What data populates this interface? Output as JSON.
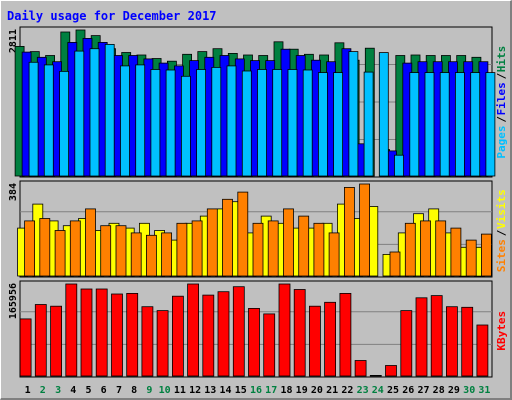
{
  "chart_data": [
    {
      "type": "bar",
      "title": "Daily usage for December 2017",
      "categories": [
        "1",
        "2",
        "3",
        "4",
        "5",
        "6",
        "7",
        "8",
        "9",
        "10",
        "11",
        "12",
        "13",
        "14",
        "15",
        "16",
        "17",
        "18",
        "19",
        "20",
        "21",
        "22",
        "23",
        "24",
        "25",
        "26",
        "27",
        "28",
        "29",
        "30",
        "31"
      ],
      "weekend_days": [
        "2",
        "3",
        "9",
        "10",
        "16",
        "17",
        "23",
        "24",
        "30",
        "31"
      ],
      "ymax_label": "2811",
      "ylim": [
        0,
        2811
      ],
      "legend": [
        {
          "label": "Hits",
          "color": "#008040"
        },
        {
          "label": "Files",
          "color": "#0000ff"
        },
        {
          "label": "Pages",
          "color": "#00c0ff"
        }
      ],
      "series": [
        {
          "name": "Hits",
          "color": "#008040",
          "values": [
            2495,
            2395,
            2320,
            2772,
            2811,
            2703,
            2451,
            2378,
            2329,
            2263,
            2210,
            2344,
            2395,
            2451,
            2361,
            2329,
            2320,
            2584,
            2441,
            2344,
            2329,
            2565,
            2229,
            2461,
            511,
            2320,
            2329,
            2320,
            2320,
            2320,
            2285
          ]
        },
        {
          "name": "Files",
          "color": "#0000ff",
          "values": [
            2385,
            2285,
            2200,
            2572,
            2650,
            2573,
            2320,
            2320,
            2254,
            2174,
            2120,
            2221,
            2285,
            2320,
            2254,
            2221,
            2221,
            2441,
            2320,
            2229,
            2200,
            2451,
            620,
            0,
            483,
            2174,
            2200,
            2200,
            2200,
            2200,
            2200
          ]
        },
        {
          "name": "Pages",
          "color": "#00c0ff",
          "values": [
            2190,
            2139,
            2013,
            2405,
            2451,
            2533,
            2120,
            2139,
            2050,
            2040,
            1920,
            2050,
            2090,
            2120,
            2021,
            2050,
            2050,
            2050,
            2040,
            1990,
            1990,
            2395,
            2000,
            2375,
            400,
            1990,
            1990,
            1990,
            1990,
            1990,
            1990
          ]
        }
      ]
    },
    {
      "type": "bar",
      "ymax_label": "384",
      "ylim": [
        0,
        384
      ],
      "legend": [
        {
          "label": "Visits",
          "color": "#ffff00"
        },
        {
          "label": "Sites",
          "color": "#ff8000"
        }
      ],
      "series": [
        {
          "name": "Visits",
          "color": "#ffff00",
          "values": [
            200,
            300,
            230,
            210,
            240,
            190,
            220,
            200,
            220,
            190,
            150,
            220,
            250,
            280,
            310,
            180,
            250,
            220,
            200,
            200,
            220,
            300,
            240,
            290,
            90,
            180,
            260,
            280,
            180,
            120,
            120
          ]
        },
        {
          "name": "Sites",
          "color": "#ff8000",
          "values": [
            230,
            240,
            190,
            230,
            280,
            210,
            210,
            180,
            170,
            180,
            220,
            230,
            280,
            320,
            350,
            220,
            230,
            280,
            250,
            220,
            180,
            370,
            384,
            0,
            100,
            220,
            230,
            230,
            200,
            150,
            175
          ]
        }
      ]
    },
    {
      "type": "bar",
      "ymax_label": "165956",
      "ylim": [
        0,
        165956
      ],
      "legend": [
        {
          "label": "KBytes",
          "color": "#ff0000"
        }
      ],
      "series": [
        {
          "name": "KBytes",
          "color": "#ff0000",
          "values": [
            103000,
            129000,
            126000,
            165956,
            157000,
            157000,
            148000,
            149000,
            125000,
            118000,
            144000,
            165956,
            146000,
            152000,
            161000,
            122000,
            112000,
            165956,
            156000,
            126000,
            133000,
            149000,
            28000,
            1000,
            19000,
            118000,
            141000,
            145000,
            125000,
            124000,
            92000
          ]
        }
      ]
    }
  ]
}
